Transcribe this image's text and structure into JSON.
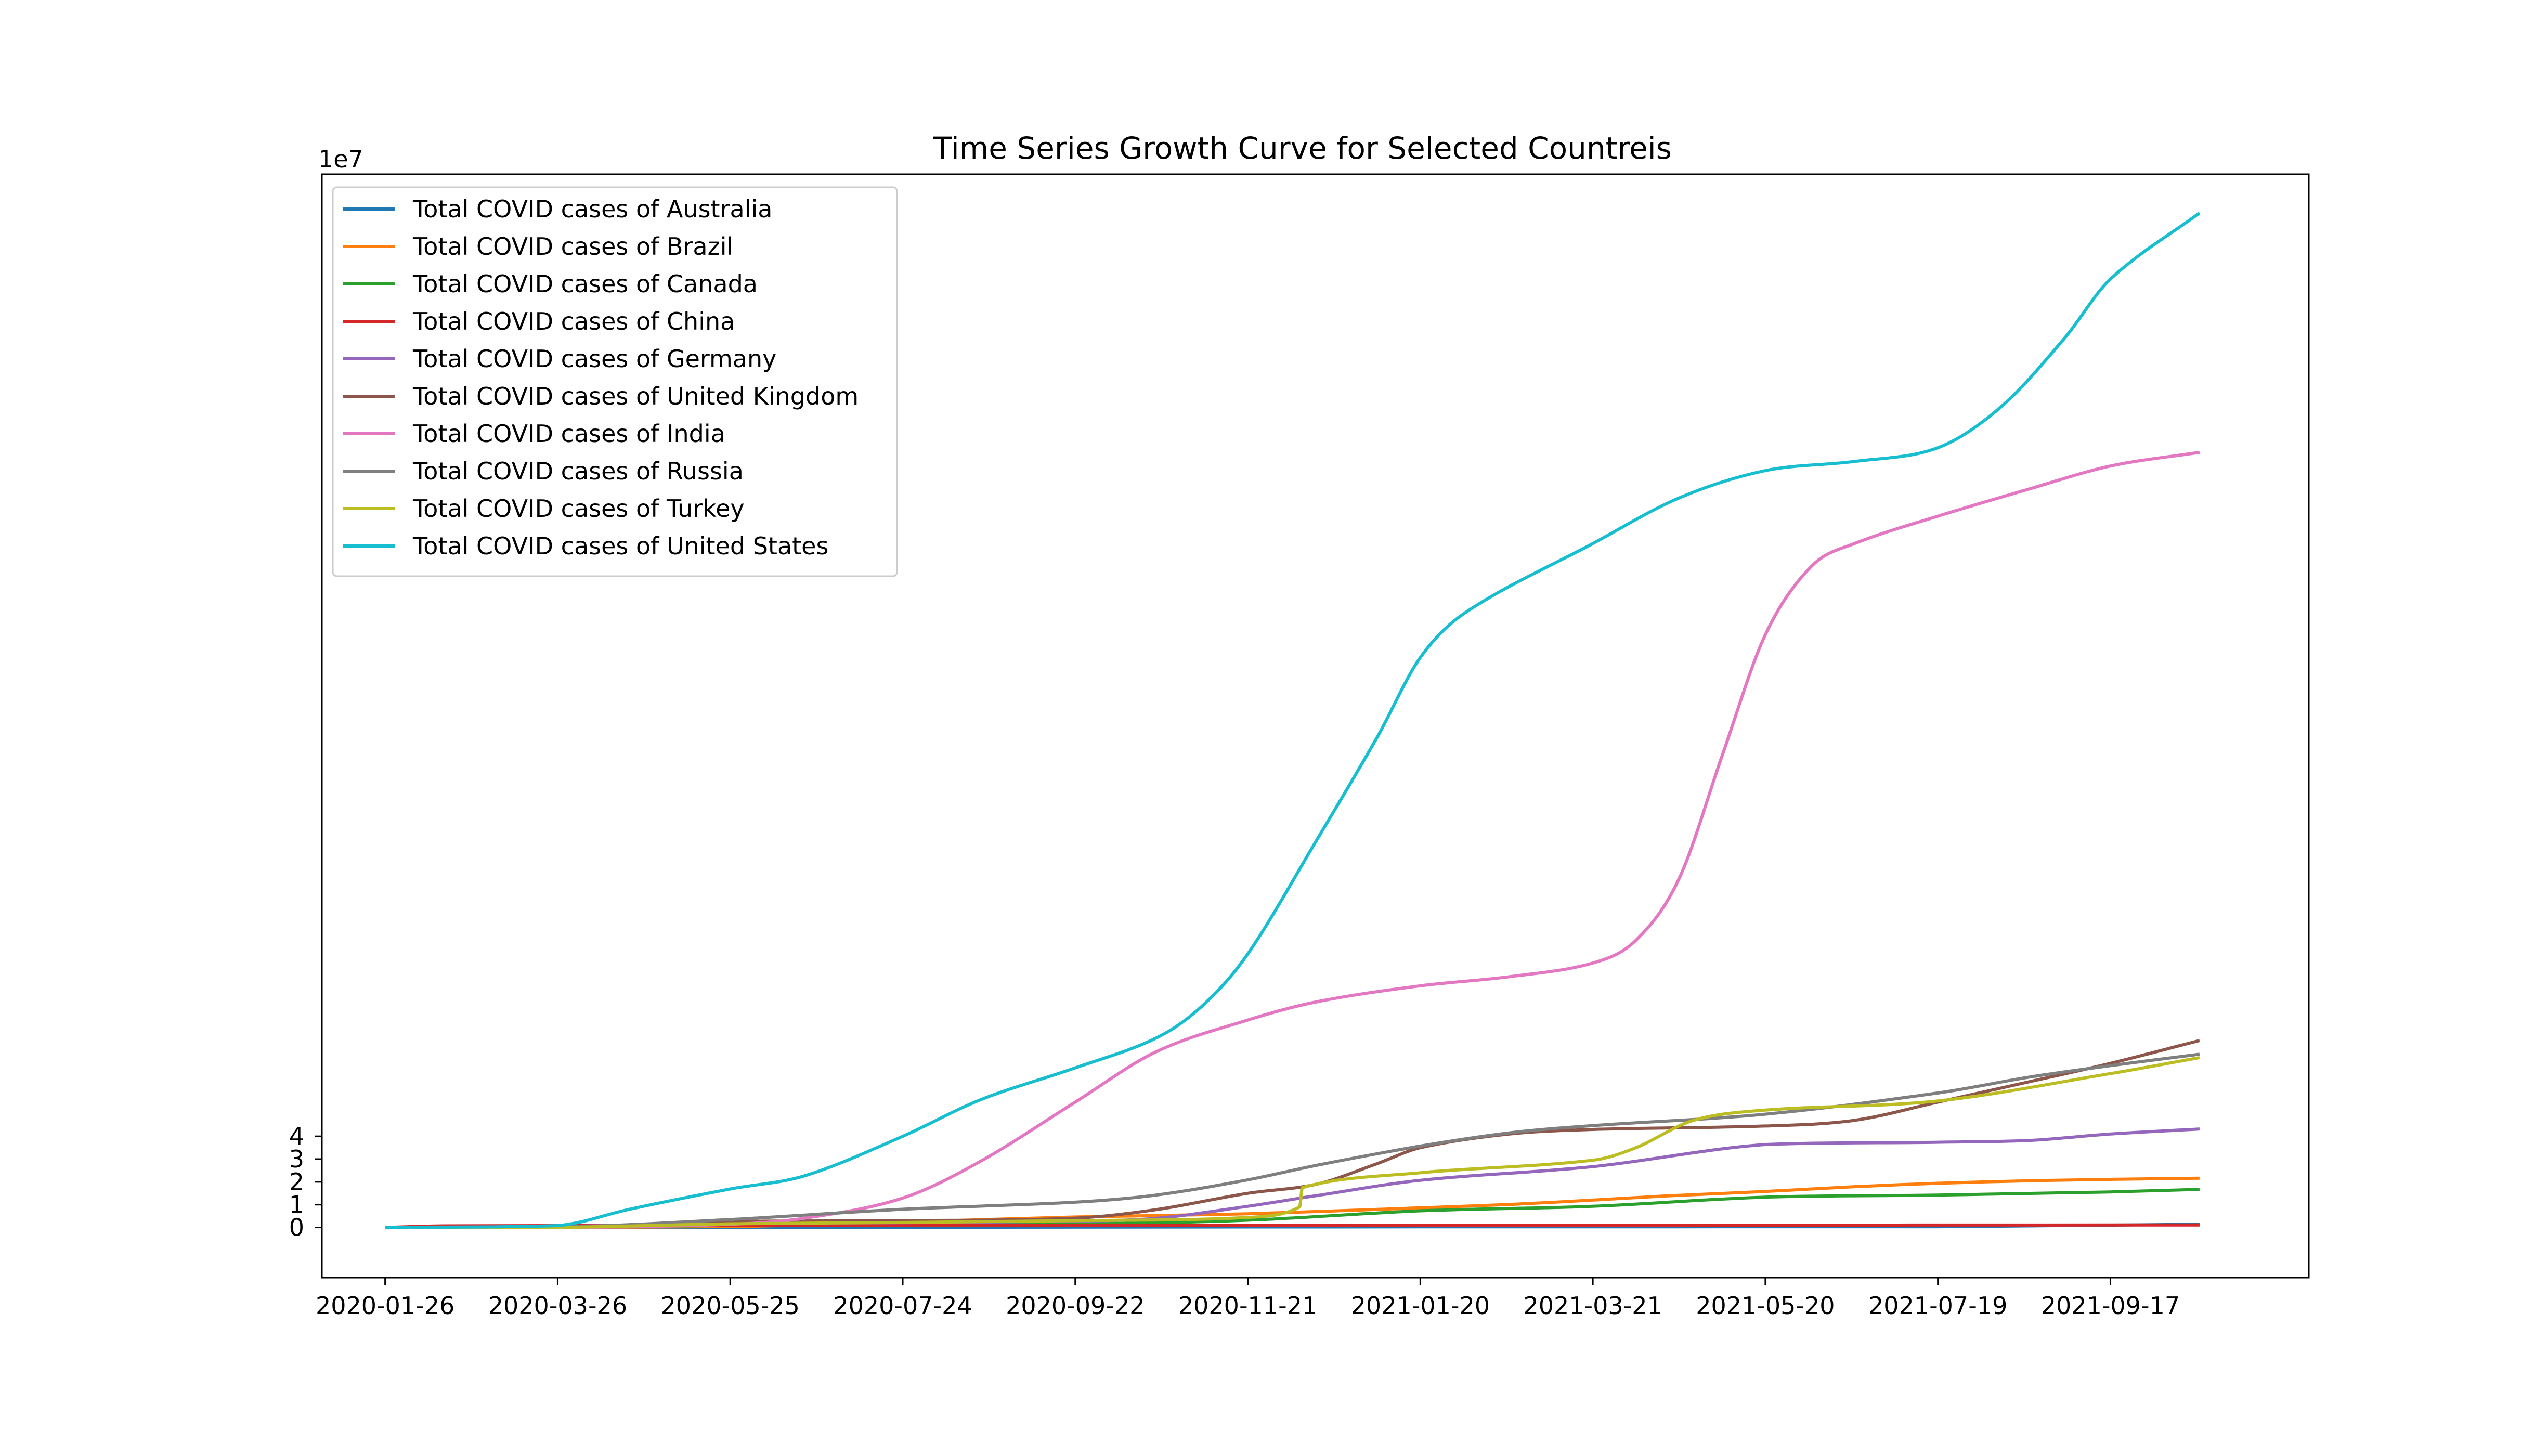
{
  "chart_data": {
    "type": "line",
    "title": "Time Series Growth Curve for Selected Countreis",
    "xlabel": "",
    "ylabel": "",
    "y_offset_label": "1e7",
    "ylim": [
      -2.2,
      46.2
    ],
    "y_scale_note": "values in units of 1e7 cases",
    "xlim": [
      "2020-01-04",
      "2021-11-25"
    ],
    "x_ticks": [
      "2020-01-26",
      "2020-03-26",
      "2020-05-25",
      "2020-07-24",
      "2020-09-22",
      "2020-11-21",
      "2021-01-20",
      "2021-03-21",
      "2021-05-20",
      "2021-07-19",
      "2021-09-17"
    ],
    "y_ticks": [
      0,
      1,
      2,
      3,
      4
    ],
    "grid": false,
    "legend_position": "upper-left",
    "series": [
      {
        "name": "Total COVID cases of Australia",
        "color": "#1f77b4",
        "points": [
          [
            "2020-01-26",
            0
          ],
          [
            "2020-07-24",
            0.01
          ],
          [
            "2021-01-20",
            0.029
          ],
          [
            "2021-07-19",
            0.033
          ],
          [
            "2021-10-18",
            0.14
          ]
        ]
      },
      {
        "name": "Total COVID cases of Brazil",
        "color": "#ff7f0e",
        "points": [
          [
            "2020-01-26",
            0
          ],
          [
            "2020-03-26",
            0.003
          ],
          [
            "2020-05-25",
            0.04
          ],
          [
            "2020-06-10",
            0.08
          ],
          [
            "2020-07-01",
            0.14
          ],
          [
            "2020-07-24",
            0.23
          ],
          [
            "2020-08-20",
            0.34
          ],
          [
            "2020-09-22",
            0.46
          ],
          [
            "2020-10-20",
            0.52
          ],
          [
            "2020-11-21",
            0.6
          ],
          [
            "2020-12-15",
            0.7
          ],
          [
            "2021-01-20",
            0.86
          ],
          [
            "2021-02-20",
            1.01
          ],
          [
            "2021-03-21",
            1.2
          ],
          [
            "2021-04-15",
            1.38
          ],
          [
            "2021-05-20",
            1.58
          ],
          [
            "2021-06-20",
            1.79
          ],
          [
            "2021-07-19",
            1.94
          ],
          [
            "2021-08-20",
            2.05
          ],
          [
            "2021-09-17",
            2.11
          ],
          [
            "2021-10-18",
            2.16
          ]
        ]
      },
      {
        "name": "Total COVID cases of Canada",
        "color": "#2ca02c",
        "points": [
          [
            "2020-01-26",
            0
          ],
          [
            "2020-03-26",
            0.004
          ],
          [
            "2020-05-25",
            0.09
          ],
          [
            "2020-07-24",
            0.11
          ],
          [
            "2020-09-22",
            0.15
          ],
          [
            "2020-11-21",
            0.32
          ],
          [
            "2021-01-20",
            0.73
          ],
          [
            "2021-03-21",
            0.93
          ],
          [
            "2021-05-20",
            1.33
          ],
          [
            "2021-07-19",
            1.42
          ],
          [
            "2021-09-17",
            1.56
          ],
          [
            "2021-10-18",
            1.67
          ]
        ]
      },
      {
        "name": "Total COVID cases of China",
        "color": "#d62728",
        "points": [
          [
            "2020-01-26",
            0
          ],
          [
            "2020-02-15",
            0.07
          ],
          [
            "2020-03-26",
            0.082
          ],
          [
            "2020-09-22",
            0.09
          ],
          [
            "2021-03-21",
            0.1
          ],
          [
            "2021-10-18",
            0.11
          ]
        ]
      },
      {
        "name": "Total COVID cases of Germany",
        "color": "#9467bd",
        "points": [
          [
            "2020-01-26",
            0
          ],
          [
            "2020-03-26",
            0.04
          ],
          [
            "2020-05-25",
            0.18
          ],
          [
            "2020-07-24",
            0.21
          ],
          [
            "2020-09-22",
            0.28
          ],
          [
            "2020-10-20",
            0.4
          ],
          [
            "2020-11-21",
            0.93
          ],
          [
            "2020-12-15",
            1.4
          ],
          [
            "2021-01-20",
            2.07
          ],
          [
            "2021-03-21",
            2.67
          ],
          [
            "2021-05-20",
            3.64
          ],
          [
            "2021-07-19",
            3.74
          ],
          [
            "2021-08-20",
            3.82
          ],
          [
            "2021-09-17",
            4.1
          ],
          [
            "2021-10-18",
            4.32
          ]
        ]
      },
      {
        "name": "Total COVID cases of United Kingdom",
        "color": "#8c564b",
        "points": [
          [
            "2020-01-26",
            0
          ],
          [
            "2020-03-26",
            0.01
          ],
          [
            "2020-05-25",
            0.26
          ],
          [
            "2020-07-24",
            0.3
          ],
          [
            "2020-09-22",
            0.41
          ],
          [
            "2020-10-20",
            0.78
          ],
          [
            "2020-11-21",
            1.5
          ],
          [
            "2020-12-15",
            1.9
          ],
          [
            "2021-01-05",
            2.8
          ],
          [
            "2021-01-20",
            3.5
          ],
          [
            "2021-02-20",
            4.1
          ],
          [
            "2021-03-21",
            4.3
          ],
          [
            "2021-05-20",
            4.45
          ],
          [
            "2021-06-20",
            4.7
          ],
          [
            "2021-07-19",
            5.5
          ],
          [
            "2021-08-20",
            6.4
          ],
          [
            "2021-09-17",
            7.2
          ],
          [
            "2021-10-18",
            8.2
          ]
        ]
      },
      {
        "name": "Total COVID cases of India",
        "color": "#e377c2",
        "points": [
          [
            "2020-01-26",
            0
          ],
          [
            "2020-03-26",
            0.001
          ],
          [
            "2020-05-25",
            0.14
          ],
          [
            "2020-06-20",
            0.41
          ],
          [
            "2020-07-24",
            1.29
          ],
          [
            "2020-08-20",
            2.9
          ],
          [
            "2020-09-22",
            5.5
          ],
          [
            "2020-10-20",
            7.7
          ],
          [
            "2020-11-21",
            9.1
          ],
          [
            "2020-12-15",
            9.9
          ],
          [
            "2021-01-20",
            10.6
          ],
          [
            "2021-02-20",
            11.0
          ],
          [
            "2021-03-21",
            11.6
          ],
          [
            "2021-04-05",
            12.6
          ],
          [
            "2021-04-20",
            15.3
          ],
          [
            "2021-05-05",
            20.7
          ],
          [
            "2021-05-20",
            26.0
          ],
          [
            "2021-06-05",
            29.0
          ],
          [
            "2021-06-20",
            30.0
          ],
          [
            "2021-07-19",
            31.2
          ],
          [
            "2021-08-20",
            32.4
          ],
          [
            "2021-09-17",
            33.4
          ],
          [
            "2021-10-18",
            34.0
          ]
        ]
      },
      {
        "name": "Total COVID cases of Russia",
        "color": "#7f7f7f",
        "points": [
          [
            "2020-01-26",
            0
          ],
          [
            "2020-03-26",
            0.01
          ],
          [
            "2020-05-25",
            0.35
          ],
          [
            "2020-07-24",
            0.8
          ],
          [
            "2020-09-22",
            1.11
          ],
          [
            "2020-10-20",
            1.42
          ],
          [
            "2020-11-21",
            2.09
          ],
          [
            "2020-12-15",
            2.73
          ],
          [
            "2021-01-20",
            3.57
          ],
          [
            "2021-02-20",
            4.15
          ],
          [
            "2021-03-21",
            4.47
          ],
          [
            "2021-05-20",
            4.97
          ],
          [
            "2021-07-19",
            5.9
          ],
          [
            "2021-08-20",
            6.6
          ],
          [
            "2021-09-17",
            7.1
          ],
          [
            "2021-10-18",
            7.6
          ]
        ]
      },
      {
        "name": "Total COVID cases of Turkey",
        "color": "#bcbd22",
        "points": [
          [
            "2020-01-26",
            0
          ],
          [
            "2020-03-26",
            0.004
          ],
          [
            "2020-05-25",
            0.16
          ],
          [
            "2020-07-24",
            0.22
          ],
          [
            "2020-09-22",
            0.3
          ],
          [
            "2020-11-21",
            0.44
          ],
          [
            "2020-12-09",
            0.9
          ],
          [
            "2020-12-10",
            1.75
          ],
          [
            "2021-01-20",
            2.4
          ],
          [
            "2021-03-21",
            2.95
          ],
          [
            "2021-04-05",
            3.5
          ],
          [
            "2021-04-25",
            4.7
          ],
          [
            "2021-05-20",
            5.15
          ],
          [
            "2021-07-19",
            5.55
          ],
          [
            "2021-09-17",
            6.75
          ],
          [
            "2021-10-18",
            7.45
          ]
        ]
      },
      {
        "name": "Total COVID cases of United States",
        "color": "#17becf",
        "points": [
          [
            "2020-01-26",
            0
          ],
          [
            "2020-03-26",
            0.08
          ],
          [
            "2020-04-20",
            0.8
          ],
          [
            "2020-05-25",
            1.69
          ],
          [
            "2020-06-20",
            2.27
          ],
          [
            "2020-07-24",
            4.0
          ],
          [
            "2020-08-20",
            5.6
          ],
          [
            "2020-09-22",
            7.0
          ],
          [
            "2020-10-20",
            8.3
          ],
          [
            "2020-11-05",
            9.7
          ],
          [
            "2020-11-21",
            12.0
          ],
          [
            "2020-12-15",
            17.0
          ],
          [
            "2021-01-05",
            21.5
          ],
          [
            "2021-01-20",
            25.0
          ],
          [
            "2021-02-05",
            27.0
          ],
          [
            "2021-03-21",
            30.0
          ],
          [
            "2021-04-20",
            32.0
          ],
          [
            "2021-05-20",
            33.2
          ],
          [
            "2021-06-20",
            33.6
          ],
          [
            "2021-07-19",
            34.2
          ],
          [
            "2021-08-10",
            36.0
          ],
          [
            "2021-09-01",
            39.0
          ],
          [
            "2021-09-17",
            41.6
          ],
          [
            "2021-10-18",
            44.5
          ]
        ]
      }
    ]
  }
}
